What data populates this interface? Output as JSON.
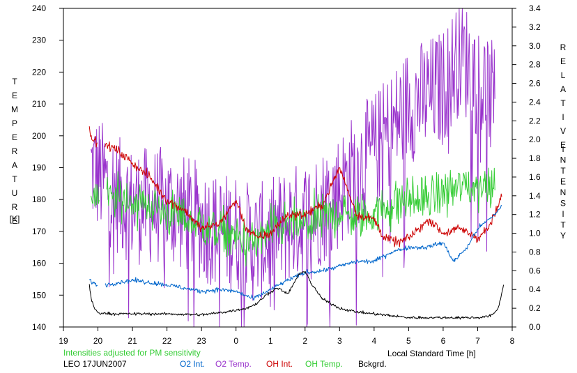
{
  "chart_data": {
    "type": "line",
    "title": "",
    "xlabel": "Local Standard Time [h]",
    "xlim": [
      19,
      8
    ],
    "x_ticks": [
      "19",
      "20",
      "21",
      "22",
      "23",
      "0",
      "1",
      "2",
      "3",
      "4",
      "5",
      "6",
      "7",
      "8"
    ],
    "y_left": {
      "label_letters": [
        "T",
        "E",
        "M",
        "P",
        "E",
        "R",
        "A",
        "T",
        "U",
        "R",
        "E"
      ],
      "unit": "[K]",
      "ylim": [
        140,
        240
      ],
      "ticks": [
        "140",
        "150",
        "160",
        "170",
        "180",
        "190",
        "200",
        "210",
        "220",
        "230",
        "240"
      ]
    },
    "y_right": {
      "label_word1": [
        "R",
        "E",
        "L",
        "A",
        "T",
        "I",
        "V",
        "E"
      ],
      "label_word2": [
        "I",
        "N",
        "T",
        "E",
        "N",
        "S",
        "I",
        "T",
        "Y"
      ],
      "ylim": [
        0.0,
        3.4
      ],
      "ticks": [
        "0.0",
        "0.2",
        "0.4",
        "0.6",
        "0.8",
        "1.0",
        "1.2",
        "1.4",
        "1.6",
        "1.8",
        "2.0",
        "2.2",
        "2.4",
        "2.6",
        "2.8",
        "3.0",
        "3.2",
        "3.4"
      ]
    },
    "note": "Intensities adjusted for PM sensitivity",
    "station": "LEO 17JUN2007",
    "legend": [
      "O2 Int.",
      "O2 Temp.",
      "OH Int.",
      "OH Temp.",
      "Bckgrd."
    ],
    "series": [
      {
        "name": "O2 Temp.",
        "axis": "left",
        "color": "#9933cc",
        "noise": 11,
        "x": [
          19.8,
          20.5,
          21.0,
          22.0,
          23.0,
          23.5,
          0.0,
          0.5,
          1.0,
          1.5,
          2.0,
          2.5,
          3.0,
          3.5,
          4.0,
          4.5,
          5.0,
          5.5,
          6.0,
          6.5,
          7.0,
          7.5
        ],
        "y": [
          190,
          182,
          178,
          178,
          173,
          170,
          170,
          166,
          168,
          172,
          174,
          178,
          183,
          190,
          195,
          202,
          210,
          212,
          215,
          226,
          218,
          210
        ]
      },
      {
        "name": "OH Temp.",
        "axis": "left",
        "color": "#33cc33",
        "noise": 6,
        "x": [
          19.8,
          20.5,
          21.0,
          22.0,
          23.0,
          23.5,
          0.0,
          0.5,
          1.0,
          1.5,
          2.0,
          2.5,
          3.0,
          3.5,
          4.0,
          4.5,
          5.0,
          5.5,
          6.0,
          6.5,
          7.0,
          7.5
        ],
        "y": [
          182,
          180,
          180,
          176,
          172,
          170,
          168,
          166,
          170,
          172,
          172,
          174,
          176,
          174,
          176,
          178,
          180,
          180,
          182,
          184,
          184,
          186
        ],
        "gap": [
          20.05,
          20.25
        ]
      },
      {
        "name": "OH Int.",
        "axis": "right",
        "color": "#cc0000",
        "noise": 0.04,
        "x": [
          19.75,
          19.95,
          20.2,
          20.5,
          21.0,
          21.5,
          22.0,
          22.5,
          23.0,
          23.5,
          0.0,
          0.3,
          0.6,
          1.0,
          1.5,
          2.0,
          2.5,
          3.0,
          3.5,
          4.0,
          4.3,
          4.7,
          5.0,
          5.3,
          5.6,
          6.0,
          6.5,
          7.0,
          7.3,
          7.5,
          7.7
        ],
        "y": [
          2.1,
          1.95,
          1.95,
          1.9,
          1.75,
          1.6,
          1.35,
          1.25,
          1.05,
          1.1,
          1.35,
          1.05,
          0.95,
          1.0,
          1.2,
          1.2,
          1.3,
          1.7,
          1.2,
          1.15,
          0.95,
          0.9,
          0.95,
          1.05,
          1.15,
          1.0,
          1.05,
          0.95,
          1.05,
          1.2,
          1.4
        ],
        "gap": [
          20.0,
          20.2
        ]
      },
      {
        "name": "O2 Int.",
        "axis": "right",
        "color": "#0066cc",
        "noise": 0.02,
        "x": [
          19.75,
          19.95,
          20.2,
          21.0,
          22.0,
          23.0,
          23.5,
          0.0,
          0.5,
          1.0,
          1.5,
          2.0,
          2.5,
          3.0,
          3.5,
          4.0,
          4.5,
          5.0,
          5.5,
          6.0,
          6.3,
          6.7,
          7.0,
          7.5,
          7.7
        ],
        "y": [
          0.5,
          0.45,
          0.45,
          0.5,
          0.45,
          0.38,
          0.4,
          0.38,
          0.3,
          0.4,
          0.5,
          0.58,
          0.6,
          0.65,
          0.7,
          0.7,
          0.8,
          0.85,
          0.85,
          0.9,
          0.7,
          0.85,
          1.05,
          1.2,
          1.3
        ],
        "gap": [
          20.0,
          20.2
        ]
      },
      {
        "name": "Bckgrd.",
        "axis": "right",
        "color": "#000000",
        "noise": 0.012,
        "x": [
          19.75,
          19.8,
          19.9,
          20.0,
          20.5,
          21.0,
          22.0,
          23.0,
          23.5,
          0.0,
          0.3,
          0.6,
          0.9,
          1.2,
          1.5,
          1.8,
          2.0,
          2.2,
          2.5,
          3.0,
          3.5,
          4.0,
          5.0,
          6.0,
          6.5,
          7.0,
          7.4,
          7.6,
          7.75
        ],
        "y": [
          0.45,
          0.3,
          0.2,
          0.15,
          0.14,
          0.14,
          0.14,
          0.13,
          0.15,
          0.18,
          0.2,
          0.25,
          0.35,
          0.42,
          0.35,
          0.55,
          0.6,
          0.45,
          0.3,
          0.2,
          0.16,
          0.14,
          0.1,
          0.1,
          0.1,
          0.1,
          0.12,
          0.2,
          0.45
        ]
      }
    ],
    "colors": {
      "text_green": "#33cc33",
      "o2_int": "#0066cc",
      "o2_temp": "#9933cc",
      "oh_int": "#cc0000",
      "oh_temp": "#33cc33",
      "bckgrd": "#000000"
    }
  }
}
